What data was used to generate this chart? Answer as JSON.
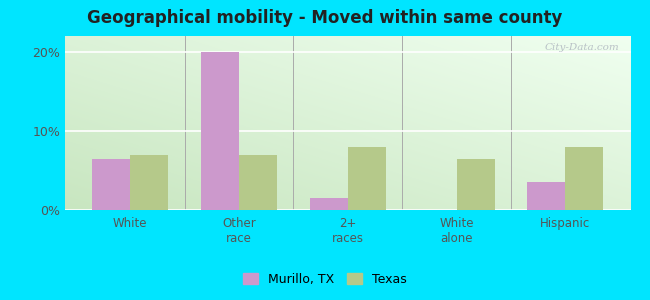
{
  "title": "Geographical mobility - Moved within same county",
  "categories": [
    "White",
    "Other\nrace",
    "2+\nraces",
    "White\nalone",
    "Hispanic"
  ],
  "murillo_values": [
    6.5,
    20.0,
    1.5,
    0.0,
    3.5
  ],
  "texas_values": [
    7.0,
    7.0,
    8.0,
    6.5,
    8.0
  ],
  "murillo_color": "#cc99cc",
  "texas_color": "#b5c98a",
  "bar_width": 0.35,
  "ylim": [
    0,
    22
  ],
  "yticks": [
    0,
    10,
    20
  ],
  "ytick_labels": [
    "0%",
    "10%",
    "20%"
  ],
  "bg_green": "#d4edda",
  "bg_white": "#f0fff0",
  "outer_bg": "#00e5ff",
  "legend_murillo": "Murillo, TX",
  "legend_texas": "Texas",
  "watermark": "City-Data.com"
}
